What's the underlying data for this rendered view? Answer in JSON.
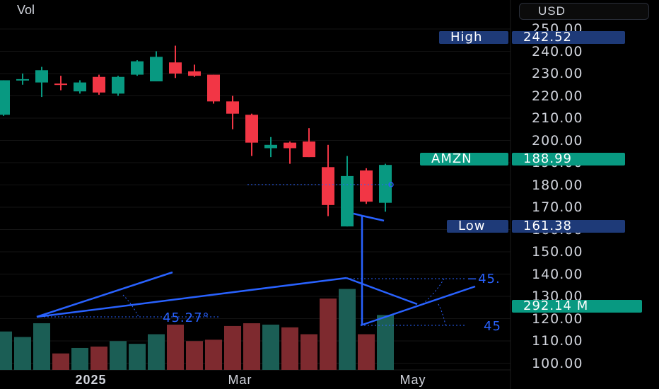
{
  "chart_data": {
    "type": "candlestick",
    "volume_label": "Vol",
    "currency": "USD",
    "ylim": [
      95,
      256
    ],
    "y_ticks": [
      "250.00",
      "240.00",
      "230.00",
      "220.00",
      "210.00",
      "200.00",
      "190.00",
      "180.00",
      "170.00",
      "160.00",
      "150.00",
      "140.00",
      "130.00",
      "120.00",
      "110.00",
      "100.00"
    ],
    "x_ticks": [
      {
        "label": "2025",
        "index": 4.5
      },
      {
        "label": "Mar",
        "index": 12.5
      },
      {
        "label": "May",
        "index": 21.5
      }
    ],
    "candles": [
      {
        "o": 211.5,
        "h": 227.0,
        "l": 211.0,
        "c": 227.0
      },
      {
        "o": 227.5,
        "h": 230.0,
        "l": 225.0,
        "c": 227.5
      },
      {
        "o": 226.0,
        "h": 233.0,
        "l": 219.5,
        "c": 231.5
      },
      {
        "o": 225.5,
        "h": 229.0,
        "l": 222.5,
        "c": 225.0
      },
      {
        "o": 222.0,
        "h": 227.0,
        "l": 221.0,
        "c": 226.0
      },
      {
        "o": 228.5,
        "h": 229.5,
        "l": 220.5,
        "c": 221.5
      },
      {
        "o": 221.0,
        "h": 229.0,
        "l": 220.0,
        "c": 228.5
      },
      {
        "o": 229.5,
        "h": 236.0,
        "l": 229.0,
        "c": 235.5
      },
      {
        "o": 226.5,
        "h": 240.0,
        "l": 226.5,
        "c": 237.5
      },
      {
        "o": 235.0,
        "h": 242.52,
        "l": 228.0,
        "c": 230.0
      },
      {
        "o": 231.0,
        "h": 234.0,
        "l": 228.5,
        "c": 229.0
      },
      {
        "o": 229.5,
        "h": 229.5,
        "l": 216.5,
        "c": 217.5
      },
      {
        "o": 217.5,
        "h": 220.0,
        "l": 205.0,
        "c": 212.0
      },
      {
        "o": 211.5,
        "h": 212.0,
        "l": 193.0,
        "c": 199.0
      },
      {
        "o": 196.5,
        "h": 201.5,
        "l": 192.5,
        "c": 198.0
      },
      {
        "o": 199.0,
        "h": 199.5,
        "l": 189.5,
        "c": 196.5
      },
      {
        "o": 199.5,
        "h": 205.5,
        "l": 192.5,
        "c": 192.5
      },
      {
        "o": 188.0,
        "h": 198.0,
        "l": 166.0,
        "c": 171.0
      },
      {
        "o": 161.38,
        "h": 193.0,
        "l": 161.38,
        "c": 184.0
      },
      {
        "o": 186.5,
        "h": 187.5,
        "l": 171.5,
        "c": 172.5
      },
      {
        "o": 172.0,
        "h": 189.5,
        "l": 168.0,
        "c": 188.99
      }
    ],
    "volumes": [
      0.28,
      0.24,
      0.34,
      0.12,
      0.16,
      0.17,
      0.21,
      0.19,
      0.26,
      0.33,
      0.21,
      0.22,
      0.32,
      0.34,
      0.33,
      0.31,
      0.26,
      0.52,
      0.59,
      0.26,
      0.4
    ],
    "colors": {
      "up": "#089981",
      "down": "#f23645",
      "up_vol": "#1b5e55",
      "down_vol": "#7e2a2f",
      "drawing": "#2962ff"
    },
    "markers": {
      "high": {
        "label": "High",
        "value": "242.52",
        "price": 242.52
      },
      "low": {
        "label": "Low",
        "value": "161.38",
        "price": 161.38
      },
      "last": {
        "label": "AMZN",
        "value": "188.99",
        "price": 188.99
      },
      "volume": {
        "value": "292.14 M",
        "price": 125.5
      }
    },
    "annotations": {
      "angle_left": "45.27°",
      "angle_right_top": "−45.",
      "angle_right_bottom": "45"
    }
  }
}
